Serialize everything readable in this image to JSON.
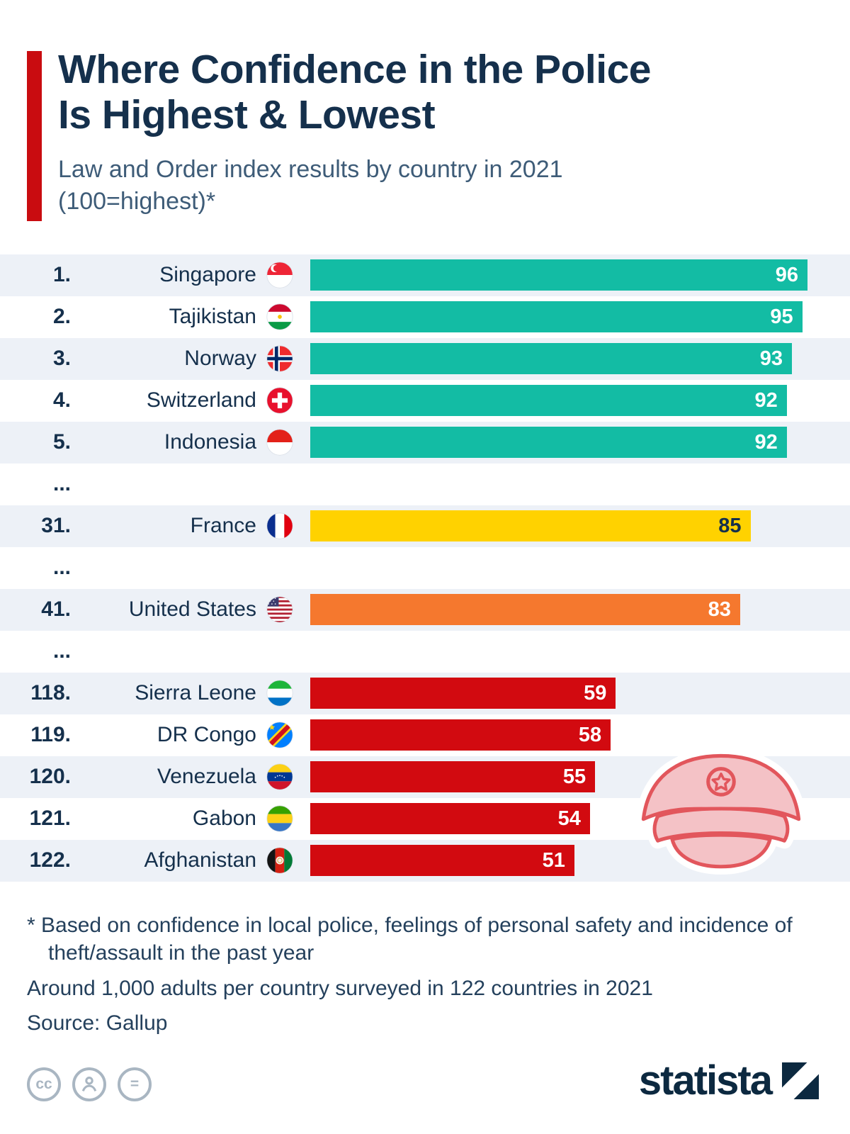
{
  "theme": {
    "accent": "#C90C10",
    "title": "#15304C",
    "subtitle": "#3E5C78",
    "stripe": "#EDF1F7",
    "text": "#24405C",
    "icon_gray": "#A9B6C2",
    "logo": "#0C2940"
  },
  "header": {
    "title_line1": "Where Confidence in the Police",
    "title_line2": "Is Highest & Lowest",
    "subtitle_line1": "Law and Order index results by country in 2021",
    "subtitle_line2": "(100=highest)*"
  },
  "chart_data": {
    "type": "bar",
    "orientation": "horizontal",
    "title": "Where Confidence in the Police Is Highest & Lowest",
    "subtitle": "Law and Order index results by country in 2021 (100=highest)*",
    "value_range": [
      0,
      100
    ],
    "scale_max": 96,
    "colors": {
      "teal": "#13BCA4",
      "yellow": "#FFD200",
      "orange": "#F5782E",
      "red": "#D20A10"
    },
    "rows": [
      {
        "type": "entry",
        "rank": "1.",
        "country": "Singapore",
        "flag": "Singapore",
        "value": 96,
        "color": "teal",
        "value_text_color": "#FFFFFF"
      },
      {
        "type": "entry",
        "rank": "2.",
        "country": "Tajikistan",
        "flag": "Tajikistan",
        "value": 95,
        "color": "teal",
        "value_text_color": "#FFFFFF"
      },
      {
        "type": "entry",
        "rank": "3.",
        "country": "Norway",
        "flag": "Norway",
        "value": 93,
        "color": "teal",
        "value_text_color": "#FFFFFF"
      },
      {
        "type": "entry",
        "rank": "4.",
        "country": "Switzerland",
        "flag": "Switzerland",
        "value": 92,
        "color": "teal",
        "value_text_color": "#FFFFFF"
      },
      {
        "type": "entry",
        "rank": "5.",
        "country": "Indonesia",
        "flag": "Indonesia",
        "value": 92,
        "color": "teal",
        "value_text_color": "#FFFFFF"
      },
      {
        "type": "ellipsis",
        "rank": "..."
      },
      {
        "type": "entry",
        "rank": "31.",
        "country": "France",
        "flag": "France",
        "value": 85,
        "color": "yellow",
        "value_text_color": "#15304C"
      },
      {
        "type": "ellipsis",
        "rank": "..."
      },
      {
        "type": "entry",
        "rank": "41.",
        "country": "United States",
        "flag": "United States",
        "value": 83,
        "color": "orange",
        "value_text_color": "#FFFFFF"
      },
      {
        "type": "ellipsis",
        "rank": "..."
      },
      {
        "type": "entry",
        "rank": "118.",
        "country": "Sierra Leone",
        "flag": "Sierra Leone",
        "value": 59,
        "color": "red",
        "value_text_color": "#FFFFFF"
      },
      {
        "type": "entry",
        "rank": "119.",
        "country": "DR Congo",
        "flag": "DR Congo",
        "value": 58,
        "color": "red",
        "value_text_color": "#FFFFFF"
      },
      {
        "type": "entry",
        "rank": "120.",
        "country": "Venezuela",
        "flag": "Venezuela",
        "value": 55,
        "color": "red",
        "value_text_color": "#FFFFFF"
      },
      {
        "type": "entry",
        "rank": "121.",
        "country": "Gabon",
        "flag": "Gabon",
        "value": 54,
        "color": "red",
        "value_text_color": "#FFFFFF"
      },
      {
        "type": "entry",
        "rank": "122.",
        "country": "Afghanistan",
        "flag": "Afghanistan",
        "value": 51,
        "color": "red",
        "value_text_color": "#FFFFFF"
      }
    ]
  },
  "footer": {
    "note_line1": "* Based on confidence in local police, feelings of personal safety and incidence of",
    "note_line2": "theft/assault in the past year",
    "survey_note": "Around 1,000 adults per country surveyed in 122 countries in 2021",
    "source": "Source: Gallup"
  },
  "branding": {
    "cc_label": "cc",
    "nd_label": "=",
    "wordmark": "statista"
  }
}
